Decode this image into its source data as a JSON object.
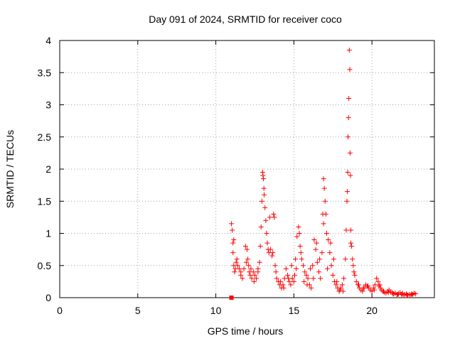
{
  "chart_data": {
    "type": "scatter",
    "title": "Day 091 of 2024, SRMTID for receiver coco",
    "xlabel": "GPS time / hours",
    "ylabel": "SRMTID / TECUs",
    "xlim": [
      0,
      24
    ],
    "ylim": [
      0,
      4
    ],
    "xticks": [
      0,
      5,
      10,
      15,
      20
    ],
    "yticks": [
      0,
      0.5,
      1,
      1.5,
      2,
      2.5,
      3,
      3.5,
      4
    ],
    "xtick_labels": [
      "0",
      "5",
      "10",
      "15",
      "20"
    ],
    "ytick_labels": [
      "0",
      "0.5",
      "1",
      "1.5",
      "2",
      "2.5",
      "3",
      "3.5",
      "4"
    ],
    "grid": true,
    "marker": "plus",
    "color": "#ff0000",
    "extra_marker": {
      "x": 11.0,
      "y": 0.0,
      "shape": "square"
    },
    "series": [
      {
        "name": "SRMTID",
        "x": [
          11.0,
          11.05,
          11.1,
          11.1,
          11.15,
          11.2,
          11.25,
          11.3,
          11.4,
          11.5,
          11.6,
          11.7,
          11.8,
          11.9,
          12.0,
          12.05,
          12.1,
          12.15,
          12.2,
          12.3,
          12.4,
          12.5,
          12.6,
          12.7,
          12.8,
          12.85,
          12.9,
          12.95,
          13.0,
          13.02,
          13.05,
          13.08,
          13.1,
          13.15,
          13.2,
          13.25,
          13.3,
          13.35,
          13.4,
          13.5,
          13.6,
          13.7,
          13.75,
          13.8,
          13.9,
          14.0,
          14.1,
          14.2,
          14.3,
          14.4,
          14.5,
          14.6,
          14.7,
          14.8,
          14.9,
          15.0,
          15.05,
          15.1,
          15.2,
          15.3,
          15.35,
          15.4,
          15.5,
          15.6,
          15.7,
          15.8,
          15.9,
          16.0,
          16.1,
          16.2,
          16.3,
          16.4,
          16.5,
          16.6,
          16.7,
          16.8,
          16.85,
          16.9,
          16.95,
          17.0,
          17.05,
          17.1,
          17.2,
          17.3,
          17.4,
          17.5,
          17.6,
          17.7,
          17.8,
          17.9,
          18.0,
          18.1,
          18.2,
          18.3,
          18.35,
          18.4,
          18.42,
          18.45,
          18.47,
          18.5,
          18.52,
          18.55,
          18.58,
          18.6,
          18.62,
          18.65,
          18.7,
          18.75,
          18.8,
          18.9,
          19.0,
          19.1,
          19.2,
          19.3,
          19.4,
          19.5,
          19.6,
          19.7,
          19.8,
          19.9,
          20.0,
          20.1,
          20.2,
          20.3,
          20.4,
          20.5,
          20.55,
          20.6,
          20.7,
          20.8,
          20.9,
          21.0,
          21.1,
          21.2,
          21.3,
          21.4,
          21.5,
          21.6,
          21.7,
          21.8,
          21.9,
          22.0,
          22.1,
          22.2,
          22.3,
          22.4,
          22.5,
          22.6,
          22.7,
          22.8,
          11.15,
          11.35,
          11.6,
          11.95,
          12.25,
          12.45,
          12.7,
          13.45,
          13.65,
          13.85,
          14.15,
          14.35,
          14.65,
          14.85,
          15.15,
          15.45,
          15.65,
          15.85,
          16.05,
          16.25,
          16.45,
          16.65,
          16.9,
          17.15,
          17.35,
          17.55,
          17.75,
          17.95,
          18.15,
          18.65,
          18.85,
          19.15,
          19.45,
          19.75,
          20.15,
          20.45,
          20.75,
          21.05,
          21.35,
          21.65,
          21.95,
          22.25,
          22.55
        ],
        "y": [
          1.15,
          1.05,
          0.85,
          0.7,
          0.5,
          0.4,
          0.45,
          0.55,
          0.5,
          0.45,
          0.35,
          0.3,
          0.45,
          0.8,
          0.75,
          0.6,
          0.5,
          0.4,
          0.35,
          0.3,
          0.4,
          0.35,
          0.3,
          0.45,
          0.55,
          0.8,
          1.1,
          1.5,
          1.95,
          1.9,
          1.85,
          1.7,
          1.6,
          1.4,
          1.2,
          1.0,
          0.85,
          0.75,
          0.7,
          0.75,
          0.65,
          1.3,
          1.25,
          0.5,
          0.3,
          0.25,
          0.2,
          0.15,
          0.2,
          0.3,
          0.45,
          0.35,
          0.25,
          0.2,
          0.3,
          0.25,
          0.35,
          0.6,
          0.95,
          1.1,
          1.0,
          0.8,
          0.6,
          0.5,
          0.4,
          0.35,
          0.3,
          0.2,
          0.15,
          0.5,
          0.9,
          0.75,
          0.55,
          0.4,
          0.3,
          0.7,
          1.3,
          1.85,
          1.7,
          1.5,
          1.3,
          1.0,
          0.9,
          0.7,
          0.5,
          0.35,
          0.25,
          0.2,
          0.15,
          0.1,
          0.15,
          0.2,
          0.3,
          0.6,
          1.05,
          1.5,
          1.65,
          1.95,
          2.5,
          2.8,
          3.1,
          3.85,
          3.55,
          2.25,
          1.9,
          1.05,
          0.8,
          0.6,
          0.5,
          0.35,
          0.25,
          0.2,
          0.15,
          0.12,
          0.1,
          0.15,
          0.2,
          0.18,
          0.15,
          0.12,
          0.1,
          0.15,
          0.2,
          0.3,
          0.25,
          0.2,
          0.15,
          0.12,
          0.1,
          0.08,
          0.07,
          0.1,
          0.12,
          0.09,
          0.08,
          0.06,
          0.07,
          0.05,
          0.06,
          0.08,
          0.05,
          0.04,
          0.05,
          0.06,
          0.04,
          0.05,
          0.04,
          0.05,
          0.07,
          0.06,
          0.9,
          0.6,
          0.4,
          0.55,
          0.45,
          0.25,
          0.4,
          1.25,
          0.7,
          0.4,
          0.25,
          0.15,
          0.3,
          0.5,
          0.45,
          0.7,
          0.25,
          0.2,
          0.45,
          0.3,
          0.85,
          0.6,
          1.15,
          0.45,
          0.85,
          0.6,
          0.25,
          0.12,
          0.1,
          0.85,
          0.4,
          0.2,
          0.15,
          0.18,
          0.12,
          0.18,
          0.1,
          0.08,
          0.06,
          0.05,
          0.07,
          0.04,
          0.06
        ]
      }
    ]
  }
}
